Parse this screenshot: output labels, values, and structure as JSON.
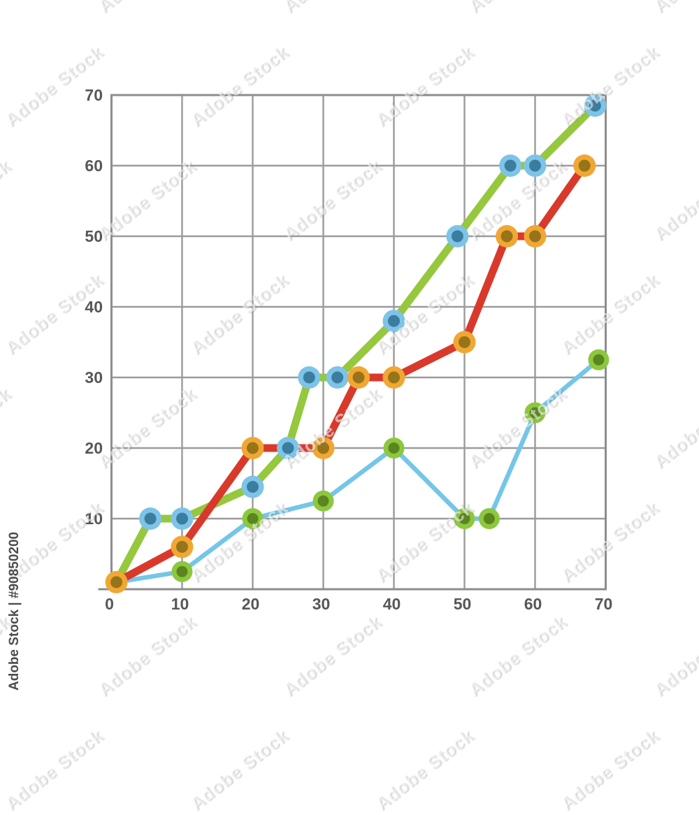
{
  "watermark": {
    "tile_text": "Adobe Stock",
    "id_text": "Adobe Stock | #90850200"
  },
  "chart_data": {
    "type": "line",
    "title": "",
    "xlabel": "",
    "ylabel": "",
    "xlim": [
      0,
      70
    ],
    "ylim": [
      0,
      70
    ],
    "grid": true,
    "legend": "none",
    "x_ticks": [
      0,
      10,
      20,
      30,
      40,
      50,
      60,
      70
    ],
    "y_ticks": [
      10,
      20,
      30,
      40,
      50,
      60,
      70
    ],
    "x_tick_labels": [
      "0",
      "10",
      "20",
      "30",
      "40",
      "50",
      "60",
      "70"
    ],
    "y_tick_labels": [
      "10",
      "20",
      "30",
      "40",
      "50",
      "60",
      "70"
    ],
    "axis_color": "#8D8D8D",
    "grid_color": "#9B9B9B",
    "label_color": "#57575A",
    "series": [
      {
        "name": "light-blue-series",
        "line_color": "#74C6E9",
        "line_width": 6.5,
        "marker_ring_color": "#8DC73F",
        "marker_core_color": "#5B851F",
        "marker_ring_r": 15,
        "marker_core_r": 8,
        "points": [
          [
            0.7,
            1
          ],
          [
            10,
            2.5
          ],
          [
            20,
            10
          ],
          [
            30,
            12.5
          ],
          [
            40,
            20
          ],
          [
            50,
            10
          ],
          [
            53.5,
            10
          ],
          [
            60,
            25
          ],
          [
            69,
            32.5
          ]
        ]
      },
      {
        "name": "green-series",
        "line_color": "#95C83D",
        "line_width": 11,
        "marker_ring_color": "#7EC3E8",
        "marker_core_color": "#3A7D9E",
        "marker_ring_r": 16,
        "marker_core_r": 8.5,
        "points": [
          [
            0.7,
            1
          ],
          [
            5.5,
            10
          ],
          [
            10,
            10
          ],
          [
            20,
            14.5
          ],
          [
            25,
            20
          ],
          [
            28,
            30
          ],
          [
            32,
            30
          ],
          [
            40,
            38
          ],
          [
            49,
            50
          ],
          [
            56.5,
            60
          ],
          [
            60,
            60
          ],
          [
            68.5,
            68.5
          ]
        ]
      },
      {
        "name": "red-series",
        "line_color": "#D9392B",
        "line_width": 11,
        "marker_ring_color": "#F0A733",
        "marker_core_color": "#97741A",
        "marker_ring_r": 16,
        "marker_core_r": 8.5,
        "points": [
          [
            0.7,
            1
          ],
          [
            10,
            6
          ],
          [
            20,
            20
          ],
          [
            30,
            20
          ],
          [
            35,
            30
          ],
          [
            40,
            30
          ],
          [
            50,
            35
          ],
          [
            56,
            50
          ],
          [
            60,
            50
          ],
          [
            67,
            60
          ]
        ]
      }
    ],
    "origin_marker": {
      "ring_color": "#F0A733",
      "core_color": "#97741A",
      "ring_r": 16,
      "core_r": 8.5,
      "point": [
        0.7,
        1
      ]
    }
  }
}
